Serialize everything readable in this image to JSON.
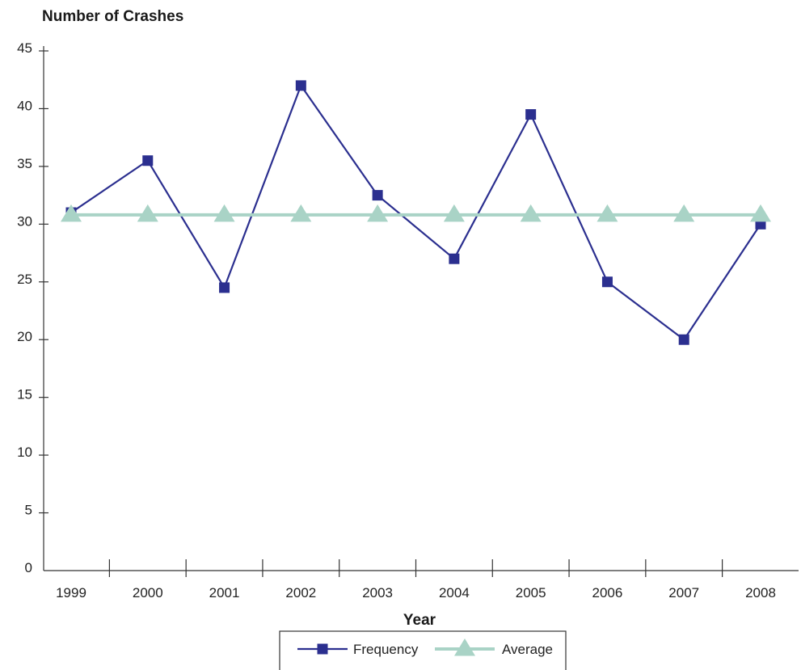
{
  "chart_data": {
    "type": "line",
    "ylabel": "Number of Crashes",
    "xlabel": "Year",
    "categories": [
      "1999",
      "2000",
      "2001",
      "2002",
      "2003",
      "2004",
      "2005",
      "2006",
      "2007",
      "2008"
    ],
    "yticks": [
      "0",
      "5",
      "10",
      "15",
      "20",
      "25",
      "30",
      "35",
      "40",
      "45"
    ],
    "ylim": [
      0,
      45
    ],
    "grid": false,
    "legend_position": "bottom",
    "series": [
      {
        "name": "Frequency",
        "marker": "square",
        "color": "#2b2f8f",
        "values": [
          31,
          35.5,
          24.5,
          42,
          32.5,
          27,
          39.5,
          25,
          20,
          30
        ]
      },
      {
        "name": "Average",
        "marker": "triangle",
        "color": "#a9d3c6",
        "values": [
          30.8,
          30.8,
          30.8,
          30.8,
          30.8,
          30.8,
          30.8,
          30.8,
          30.8,
          30.8
        ]
      }
    ]
  }
}
